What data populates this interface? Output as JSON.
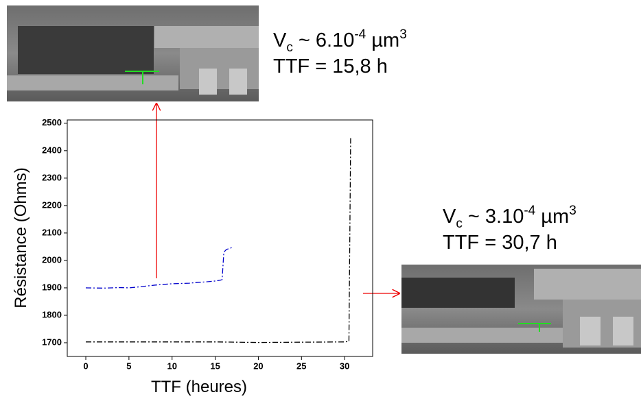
{
  "chart_data": {
    "type": "line",
    "x_label": "TTF (heures)",
    "y_label": "Résistance (Ohms)",
    "series": [
      {
        "color": "#0000cc",
        "x": [
          0,
          2,
          4,
          5,
          6,
          8,
          10,
          12,
          13,
          14,
          15,
          15.6,
          15.8,
          16,
          16.3,
          16.8,
          17
        ],
        "values": [
          1900,
          1899,
          1901,
          1900,
          1903,
          1910,
          1915,
          1917,
          1920,
          1922,
          1925,
          1928,
          1930,
          2030,
          2040,
          2045,
          2050
        ]
      },
      {
        "color": "#000000",
        "x": [
          0,
          5,
          10,
          15,
          20,
          25,
          30,
          30.5,
          30.7
        ],
        "values": [
          1703,
          1703,
          1703,
          1703,
          1701,
          1702,
          1703,
          1705,
          2450
        ]
      }
    ],
    "xlim": [
      -2.15,
      33.25
    ],
    "ylim": [
      1650,
      2512
    ],
    "xticks": [
      0,
      5,
      10,
      15,
      20,
      25,
      30
    ],
    "yticks": [
      1700,
      1800,
      1900,
      2000,
      2100,
      2200,
      2300,
      2400,
      2500
    ],
    "annotations": [
      {
        "text_parts": [
          "V",
          "c",
          " ~ 6.10",
          "-4",
          " µm",
          "3"
        ],
        "ttf": "TTF = 15,8 h"
      },
      {
        "text_parts": [
          "V",
          "c",
          " ~ 3.10",
          "-4",
          " µm",
          "3"
        ],
        "ttf": "TTF = 30,7 h"
      }
    ]
  }
}
